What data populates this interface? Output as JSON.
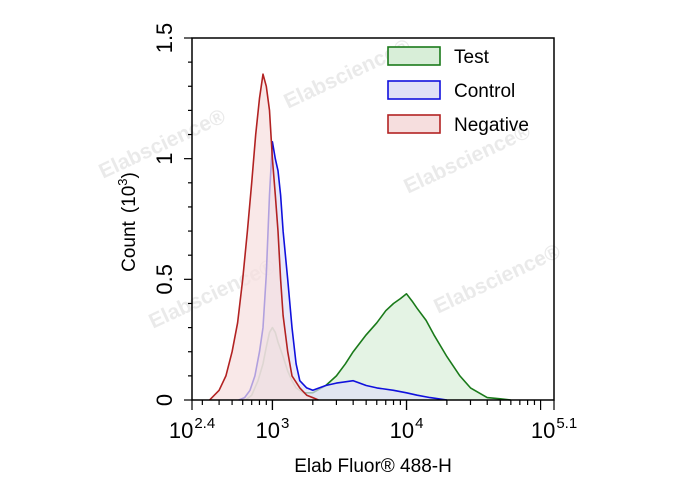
{
  "chart_data": {
    "type": "area",
    "xlabel": "Elab Fluor® 488-H",
    "ylabel": "Count",
    "ylabel_unit_base": "10",
    "ylabel_unit_exp": "3",
    "x_scale": "log",
    "xlim": [
      251.19,
      125892.5
    ],
    "ylim": [
      0,
      1.5
    ],
    "x_ticks": [
      {
        "base": "10",
        "exp": "2.4",
        "value": 251.19
      },
      {
        "base": "10",
        "exp": "3",
        "value": 1000
      },
      {
        "base": "10",
        "exp": "4",
        "value": 10000
      },
      {
        "base": "10",
        "exp": "5.1",
        "value": 125892.5
      }
    ],
    "y_ticks": [
      {
        "label": "0",
        "value": 0
      },
      {
        "label": "0.5",
        "value": 0.5
      },
      {
        "label": "1",
        "value": 1
      },
      {
        "label": "1.5",
        "value": 1.5
      }
    ],
    "legend_position": "top-right",
    "watermark": "Elabscience®",
    "series": [
      {
        "name": "Test",
        "color": "#1a7a1a",
        "fill": "#d8eed8",
        "x": [
          630,
          700,
          780,
          850,
          900,
          950,
          1000,
          1050,
          1100,
          1200,
          1300,
          1400,
          1500,
          1700,
          2000,
          2500,
          3000,
          3500,
          4000,
          5000,
          6000,
          7000,
          8000,
          9000,
          10000,
          11000,
          12000,
          14000,
          16000,
          20000,
          25000,
          30000,
          40000,
          50000,
          60000
        ],
        "y": [
          0,
          0.02,
          0.08,
          0.15,
          0.22,
          0.28,
          0.3,
          0.28,
          0.24,
          0.18,
          0.12,
          0.08,
          0.05,
          0.03,
          0.03,
          0.06,
          0.1,
          0.15,
          0.2,
          0.27,
          0.32,
          0.37,
          0.4,
          0.42,
          0.44,
          0.41,
          0.38,
          0.33,
          0.27,
          0.18,
          0.1,
          0.05,
          0.01,
          0.005,
          0
        ]
      },
      {
        "name": "Control",
        "color": "#1010dd",
        "fill": "#e0e0f6",
        "x": [
          560,
          620,
          680,
          740,
          800,
          850,
          900,
          950,
          1000,
          1050,
          1100,
          1150,
          1200,
          1300,
          1400,
          1500,
          1600,
          1800,
          2000,
          2500,
          3000,
          4000,
          5000,
          6000,
          8000,
          10000,
          12000,
          15000,
          20000
        ],
        "y": [
          0,
          0.01,
          0.04,
          0.1,
          0.2,
          0.3,
          0.52,
          0.85,
          1.07,
          1.0,
          0.95,
          0.85,
          0.7,
          0.5,
          0.3,
          0.15,
          0.08,
          0.05,
          0.04,
          0.06,
          0.07,
          0.08,
          0.06,
          0.05,
          0.04,
          0.03,
          0.02,
          0.01,
          0
        ]
      },
      {
        "name": "Negative",
        "color": "#b22222",
        "fill": "#f6dede",
        "x": [
          340,
          400,
          450,
          500,
          550,
          600,
          650,
          700,
          750,
          800,
          850,
          900,
          950,
          1000,
          1050,
          1100,
          1150,
          1200,
          1300,
          1400,
          1600,
          1800,
          2000,
          2200
        ],
        "y": [
          0,
          0.04,
          0.1,
          0.2,
          0.32,
          0.5,
          0.7,
          0.9,
          1.1,
          1.25,
          1.35,
          1.3,
          1.2,
          1.0,
          0.85,
          0.7,
          0.5,
          0.35,
          0.2,
          0.1,
          0.05,
          0.02,
          0.01,
          0
        ]
      }
    ]
  }
}
